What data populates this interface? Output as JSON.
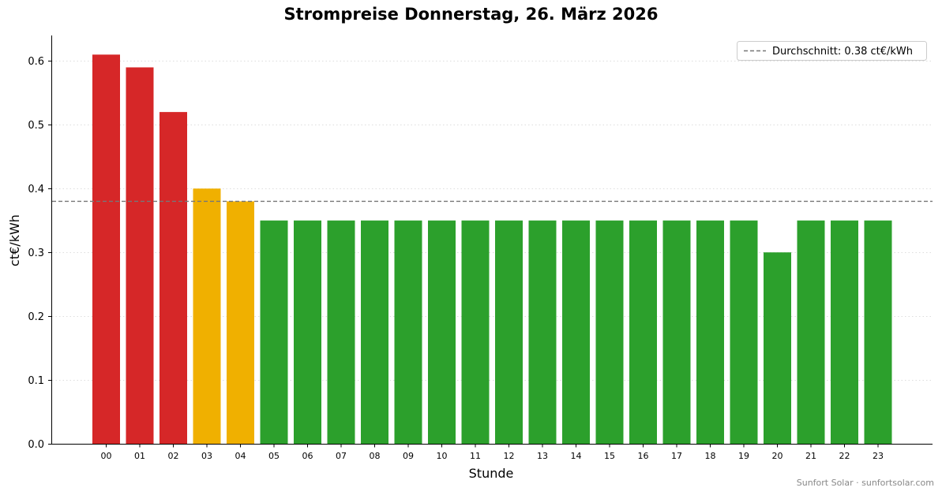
{
  "chart_data": {
    "type": "bar",
    "title": "Strompreise Donnerstag, 26. März 2026",
    "xlabel": "Stunde",
    "ylabel": "ct€/kWh",
    "categories": [
      "00",
      "01",
      "02",
      "03",
      "04",
      "05",
      "06",
      "07",
      "08",
      "09",
      "10",
      "11",
      "12",
      "13",
      "14",
      "15",
      "16",
      "17",
      "18",
      "19",
      "20",
      "21",
      "22",
      "23"
    ],
    "values": [
      0.61,
      0.59,
      0.52,
      0.4,
      0.38,
      0.35,
      0.35,
      0.35,
      0.35,
      0.35,
      0.35,
      0.35,
      0.35,
      0.35,
      0.35,
      0.35,
      0.35,
      0.35,
      0.35,
      0.35,
      0.3,
      0.35,
      0.35,
      0.35
    ],
    "bar_levels": [
      "high",
      "high",
      "high",
      "mid",
      "mid",
      "low",
      "low",
      "low",
      "low",
      "low",
      "low",
      "low",
      "low",
      "low",
      "low",
      "low",
      "low",
      "low",
      "low",
      "low",
      "low",
      "low",
      "low",
      "low"
    ],
    "colors": {
      "high": "#d62728",
      "mid": "#f0b000",
      "low": "#2ca02c",
      "average_line": "#777777"
    },
    "ylim": [
      0,
      0.64
    ],
    "yticks": [
      "0.0",
      "0.1",
      "0.2",
      "0.3",
      "0.4",
      "0.5",
      "0.6"
    ],
    "ytick_values": [
      0.0,
      0.1,
      0.2,
      0.3,
      0.4,
      0.5,
      0.6
    ],
    "average": 0.38,
    "grid": "horizontal-dotted",
    "legend": {
      "placement": "top-right",
      "label": "Durchschnitt: 0.38 ct€/kWh"
    }
  },
  "footer": "Sunfort Solar · sunfortsolar.com"
}
